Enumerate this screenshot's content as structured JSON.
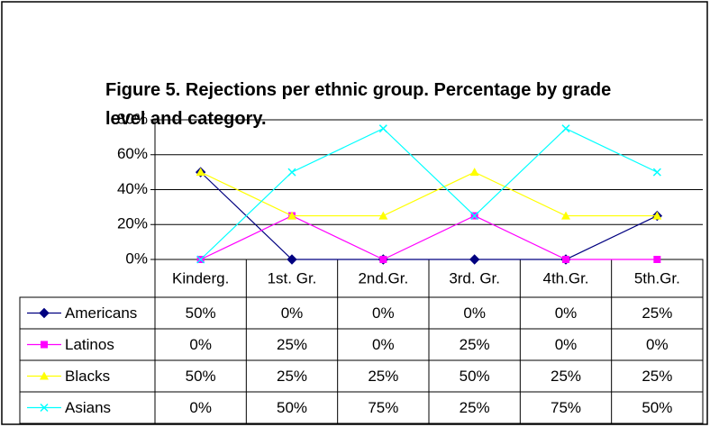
{
  "chart_data": {
    "type": "line",
    "title": "Figure 5. Rejections per ethnic group. Percentage by grade level and category.",
    "categories": [
      "Kinderg.",
      "1st. Gr.",
      "2nd.Gr.",
      "3rd. Gr.",
      "4th.Gr.",
      "5th.Gr."
    ],
    "series": [
      {
        "name": "Americans",
        "color": "#000080",
        "marker": "diamond",
        "values": [
          50,
          0,
          0,
          0,
          0,
          25
        ],
        "value_labels": [
          "50%",
          "0%",
          "0%",
          "0%",
          "0%",
          "25%"
        ]
      },
      {
        "name": "Latinos",
        "color": "#ff00ff",
        "marker": "square",
        "values": [
          0,
          25,
          0,
          25,
          0,
          0
        ],
        "value_labels": [
          "0%",
          "25%",
          "0%",
          "25%",
          "0%",
          "0%"
        ]
      },
      {
        "name": "Blacks",
        "color": "#ffff00",
        "marker": "triangle",
        "values": [
          50,
          25,
          25,
          50,
          25,
          25
        ],
        "value_labels": [
          "50%",
          "25%",
          "25%",
          "50%",
          "25%",
          "25%"
        ]
      },
      {
        "name": "Asians",
        "color": "#00ffff",
        "marker": "x",
        "values": [
          0,
          50,
          75,
          25,
          75,
          50
        ],
        "value_labels": [
          "0%",
          "50%",
          "75%",
          "25%",
          "75%",
          "50%"
        ]
      }
    ],
    "ylim": [
      0,
      80
    ],
    "yticks": [
      {
        "value": 0,
        "label": "0%"
      },
      {
        "value": 20,
        "label": "20%"
      },
      {
        "value": 40,
        "label": "40%"
      },
      {
        "value": 60,
        "label": "60%"
      },
      {
        "value": 80,
        "label": "80%"
      }
    ],
    "grid": true
  }
}
